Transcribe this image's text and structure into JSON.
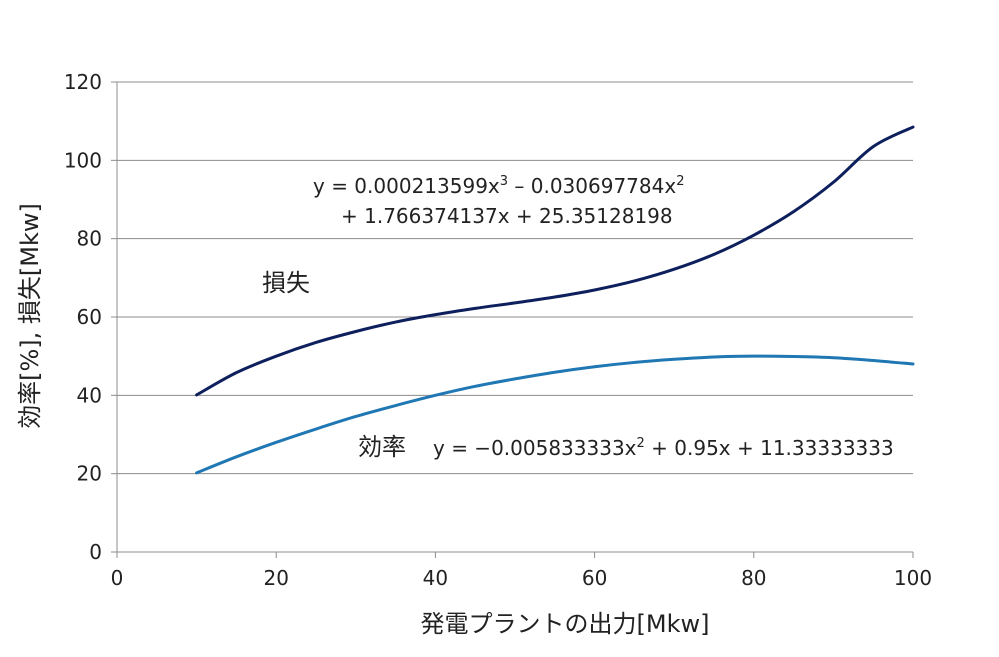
{
  "chart_data": {
    "type": "line",
    "xlabel": "発電プラントの出力[Mkw]",
    "ylabel": "効率[%], 損失[Mkw]",
    "xlim": [
      0,
      100
    ],
    "ylim": [
      0,
      120
    ],
    "xticks": [
      "0",
      "20",
      "40",
      "60",
      "80",
      "100"
    ],
    "yticks": [
      "0",
      "20",
      "40",
      "60",
      "80",
      "100",
      "120"
    ],
    "grid": "horizontal",
    "series": [
      {
        "name": "損失",
        "color": "#0d1f5c",
        "x": [
          10,
          15,
          20,
          25,
          30,
          35,
          40,
          45,
          50,
          55,
          60,
          65,
          70,
          75,
          80,
          85,
          90,
          95,
          100
        ],
        "values": [
          40.1,
          45.8,
          50.0,
          53.5,
          56.3,
          58.7,
          60.6,
          62.2,
          63.6,
          65.1,
          66.9,
          69.2,
          72.2,
          76.0,
          80.9,
          86.9,
          94.4,
          103.5,
          108.5
        ]
      },
      {
        "name": "効率",
        "color": "#1f77b4",
        "x": [
          10,
          15,
          20,
          25,
          30,
          35,
          40,
          45,
          50,
          55,
          60,
          65,
          70,
          75,
          80,
          85,
          90,
          95,
          100
        ],
        "values": [
          20.2,
          24.3,
          28.0,
          31.4,
          34.6,
          37.4,
          40.0,
          42.3,
          44.2,
          45.9,
          47.3,
          48.4,
          49.2,
          49.8,
          50.0,
          49.9,
          49.6,
          48.9,
          48.0
        ]
      }
    ],
    "annotations": {
      "loss_label": "損失",
      "loss_eq_line1_a": "y = 0.000213599x",
      "loss_eq_line1_sup1": "3",
      "loss_eq_line1_b": " – 0.030697784x",
      "loss_eq_line1_sup2": "2",
      "loss_eq_line2": "+ 1.766374137x + 25.35128198",
      "eff_label": "効率",
      "eff_eq_a": "y = −0.005833333x",
      "eff_eq_sup": "2",
      "eff_eq_b": " + 0.95x + 11.33333333"
    }
  }
}
